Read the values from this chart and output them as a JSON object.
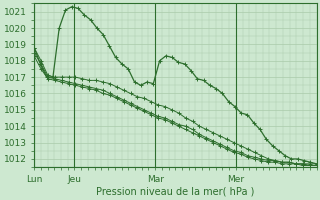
{
  "bg_color": "#cde8d0",
  "grid_color": "#aacbaa",
  "line_color": "#2d6e2d",
  "tick_color": "#2d6e2d",
  "xlabel": "Pression niveau de la mer( hPa )",
  "ylim": [
    1011.5,
    1021.5
  ],
  "yticks": [
    1012,
    1013,
    1014,
    1015,
    1016,
    1017,
    1018,
    1019,
    1020,
    1021
  ],
  "xtick_labels": [
    "Lun",
    "Jeu",
    "Mar",
    "Mer"
  ],
  "xtick_positions": [
    0,
    12,
    36,
    60
  ],
  "xlim": [
    0,
    84
  ],
  "series1": [
    1018.8,
    1018.0,
    1017.1,
    1017.0,
    1017.0,
    1017.0,
    1017.0,
    1016.9,
    1016.8,
    1016.8,
    1016.7,
    1016.6,
    1016.4,
    1016.2,
    1016.0,
    1015.8,
    1015.7,
    1015.5,
    1015.3,
    1015.2,
    1015.0,
    1014.8,
    1014.5,
    1014.3,
    1014.0,
    1013.8,
    1013.6,
    1013.4,
    1013.2,
    1013.0,
    1012.8,
    1012.6,
    1012.4,
    1012.2,
    1012.0,
    1011.9,
    1011.8,
    1011.8,
    1011.7,
    1011.7,
    1011.6,
    1011.6
  ],
  "series2": [
    1018.5,
    1017.8,
    1017.0,
    1016.9,
    1016.8,
    1016.7,
    1016.6,
    1016.5,
    1016.4,
    1016.3,
    1016.2,
    1016.0,
    1015.8,
    1015.6,
    1015.4,
    1015.2,
    1015.0,
    1014.8,
    1014.6,
    1014.5,
    1014.3,
    1014.1,
    1014.0,
    1013.8,
    1013.5,
    1013.3,
    1013.1,
    1012.9,
    1012.7,
    1012.5,
    1012.4,
    1012.2,
    1012.1,
    1012.0,
    1011.9,
    1011.9,
    1011.8,
    1011.8,
    1011.7,
    1011.7,
    1011.7,
    1011.7
  ],
  "series3": [
    1018.3,
    1017.5,
    1016.9,
    1016.8,
    1016.7,
    1016.6,
    1016.5,
    1016.4,
    1016.3,
    1016.2,
    1016.0,
    1015.9,
    1015.7,
    1015.5,
    1015.3,
    1015.1,
    1014.9,
    1014.7,
    1014.5,
    1014.4,
    1014.2,
    1014.0,
    1013.8,
    1013.6,
    1013.4,
    1013.2,
    1013.0,
    1012.8,
    1012.6,
    1012.4,
    1012.3,
    1012.1,
    1012.0,
    1011.9,
    1011.8,
    1011.8,
    1011.7,
    1011.7,
    1011.7,
    1011.6,
    1011.6,
    1011.6
  ],
  "series4": [
    1018.8,
    1017.8,
    1017.0,
    1017.0,
    1020.0,
    1021.1,
    1021.3,
    1021.2,
    1020.8,
    1020.5,
    1020.0,
    1019.6,
    1018.9,
    1018.2,
    1017.8,
    1017.5,
    1016.7,
    1016.5,
    1016.7,
    1016.6,
    1018.0,
    1018.3,
    1018.2,
    1017.9,
    1017.8,
    1017.4,
    1016.9,
    1016.8,
    1016.5,
    1016.3,
    1016.0,
    1015.5,
    1015.2,
    1014.8,
    1014.7,
    1014.2,
    1013.8,
    1013.2,
    1012.8,
    1012.5,
    1012.2,
    1012.0,
    1012.0,
    1011.9,
    1011.8,
    1011.7
  ],
  "n_points": 42,
  "n_points4": 46
}
